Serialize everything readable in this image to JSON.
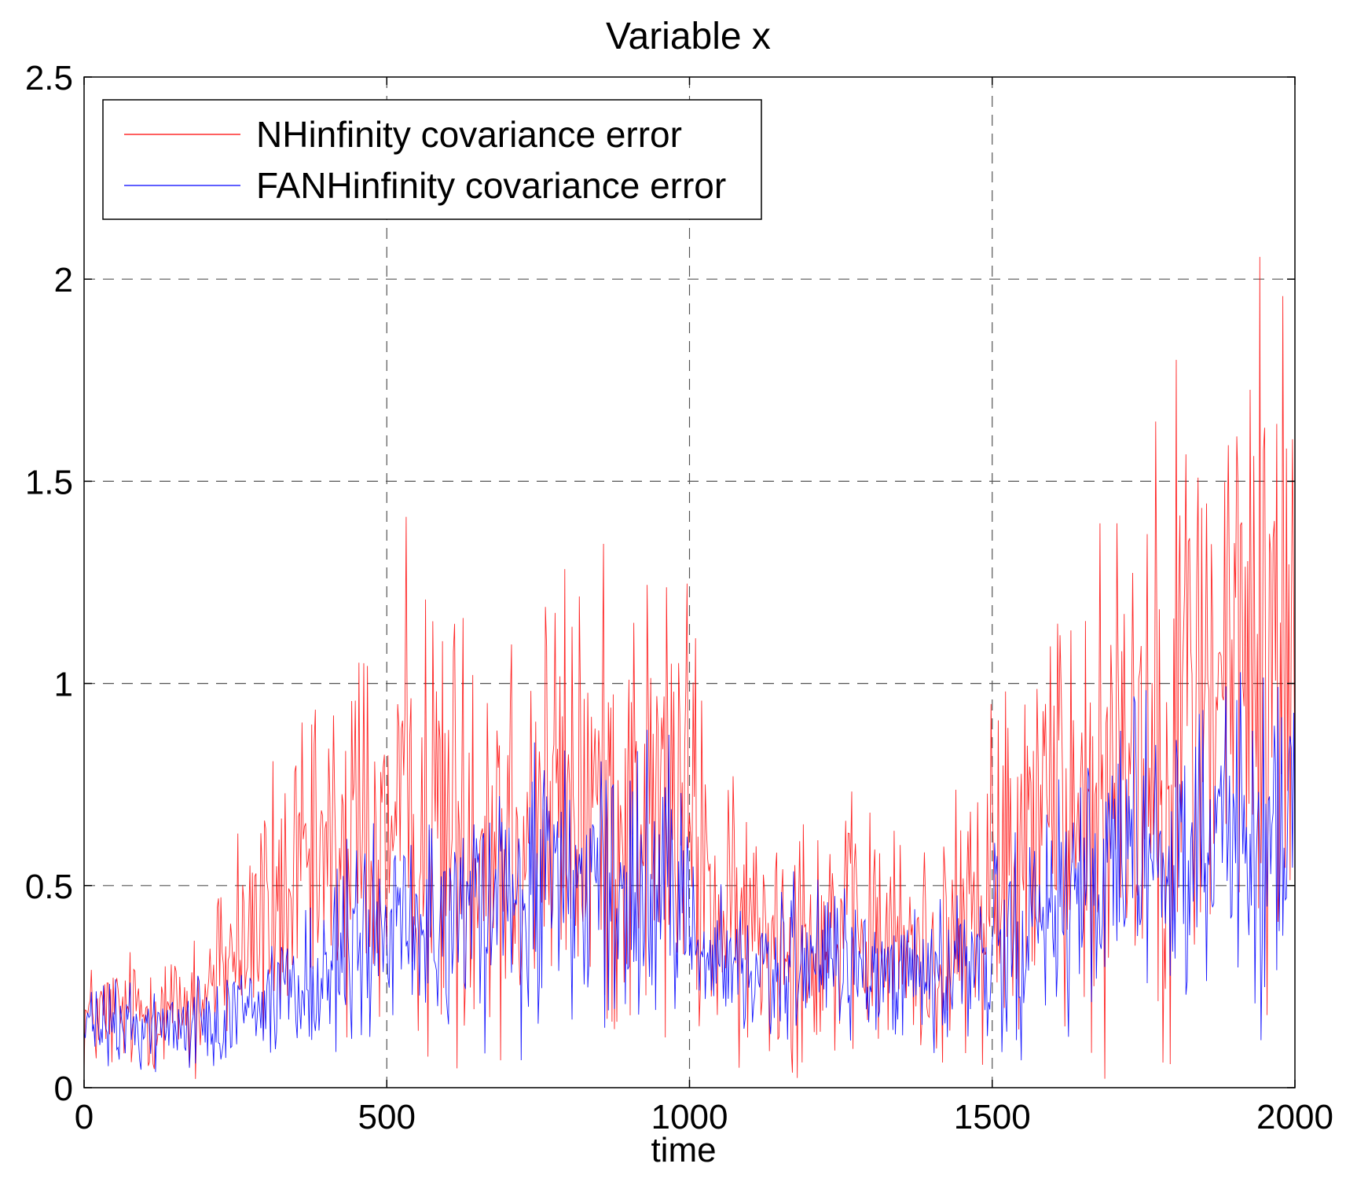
{
  "chart_data": {
    "type": "line",
    "title": "Variable x",
    "xlabel": "time",
    "ylabel": "",
    "xlim": [
      0,
      2000
    ],
    "ylim": [
      0,
      2.5
    ],
    "xticks": [
      0,
      500,
      1000,
      1500,
      2000
    ],
    "yticks": [
      0,
      0.5,
      1,
      1.5,
      2,
      2.5
    ],
    "xtick_labels": [
      "0",
      "500",
      "1000",
      "1500",
      "2000"
    ],
    "ytick_labels": [
      "0",
      "0.5",
      "1",
      "1.5",
      "2",
      "2.5"
    ],
    "grid": true,
    "legend_position": "top-left",
    "series": [
      {
        "name": "NHinfinity covariance error",
        "color": "#ff0000",
        "x": [
          0,
          50,
          100,
          150,
          200,
          250,
          300,
          350,
          400,
          450,
          500,
          550,
          600,
          650,
          700,
          750,
          800,
          850,
          900,
          950,
          1000,
          1050,
          1100,
          1150,
          1200,
          1250,
          1300,
          1350,
          1400,
          1450,
          1500,
          1550,
          1600,
          1650,
          1700,
          1750,
          1800,
          1850,
          1900,
          1950,
          2000
        ],
        "y": [
          0.17,
          0.18,
          0.19,
          0.19,
          0.22,
          0.35,
          0.42,
          0.48,
          0.55,
          0.6,
          0.64,
          0.65,
          0.66,
          0.67,
          0.68,
          0.69,
          0.7,
          0.69,
          0.7,
          0.7,
          0.68,
          0.4,
          0.39,
          0.41,
          0.4,
          0.38,
          0.37,
          0.35,
          0.33,
          0.38,
          0.5,
          0.6,
          0.68,
          0.75,
          0.82,
          0.88,
          0.95,
          1.0,
          1.05,
          1.08,
          1.1
        ]
      },
      {
        "name": "FANHinfinity covariance error",
        "color": "#0000ff",
        "x": [
          0,
          50,
          100,
          150,
          200,
          250,
          300,
          350,
          400,
          450,
          500,
          550,
          600,
          650,
          700,
          750,
          800,
          850,
          900,
          950,
          1000,
          1050,
          1100,
          1150,
          1200,
          1250,
          1300,
          1350,
          1400,
          1450,
          1500,
          1550,
          1600,
          1650,
          1700,
          1750,
          1800,
          1850,
          1900,
          1950,
          2000
        ],
        "y": [
          0.15,
          0.15,
          0.15,
          0.15,
          0.17,
          0.2,
          0.22,
          0.26,
          0.3,
          0.34,
          0.38,
          0.4,
          0.42,
          0.44,
          0.45,
          0.46,
          0.47,
          0.47,
          0.47,
          0.46,
          0.45,
          0.3,
          0.29,
          0.3,
          0.3,
          0.29,
          0.28,
          0.27,
          0.26,
          0.28,
          0.33,
          0.38,
          0.42,
          0.46,
          0.5,
          0.53,
          0.57,
          0.6,
          0.63,
          0.65,
          0.66
        ]
      }
    ]
  }
}
